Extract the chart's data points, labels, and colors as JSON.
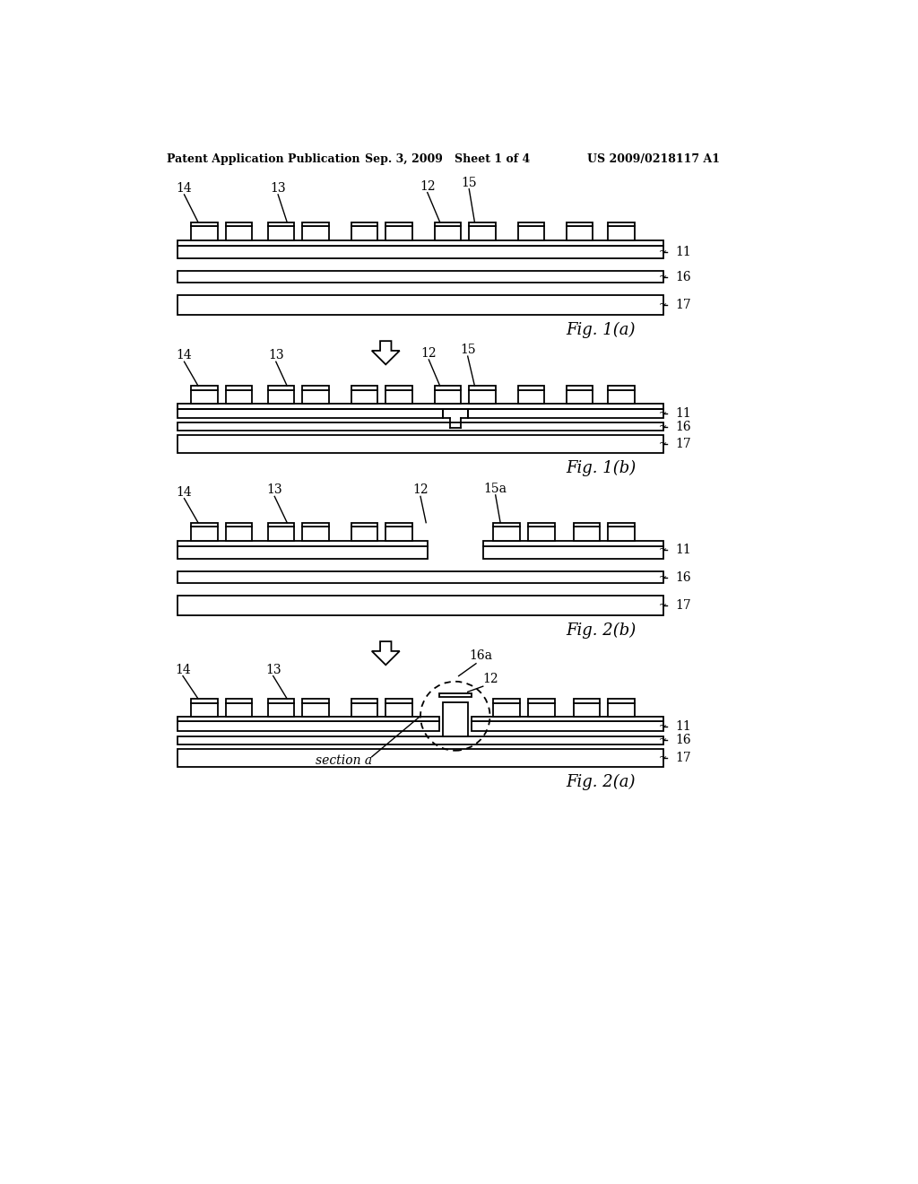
{
  "bg_color": "#ffffff",
  "line_color": "#000000",
  "header_left": "Patent Application Publication",
  "header_mid": "Sep. 3, 2009   Sheet 1 of 4",
  "header_right": "US 2009/0218117 A1",
  "fig1a_label": "Fig. 1(a)",
  "fig1b_label": "Fig. 1(b)",
  "fig2b_label": "Fig. 2(b)",
  "fig2a_label": "Fig. 2(a)",
  "section_label": "section a"
}
